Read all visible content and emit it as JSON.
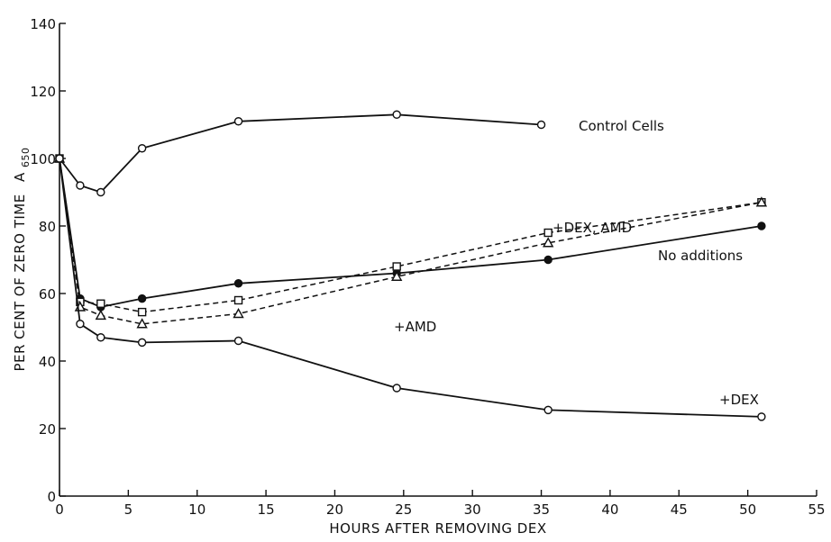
{
  "chart_data": {
    "type": "line",
    "xlabel": "HOURS AFTER REMOVING DEX",
    "ylabel": "PER CENT OF ZERO TIME",
    "ylabel_subscript_base": "A",
    "ylabel_subscript": "650",
    "xlim": [
      0,
      55
    ],
    "ylim": [
      0,
      140
    ],
    "xticks": [
      "0",
      "5",
      "10",
      "15",
      "20",
      "25",
      "30",
      "35",
      "40",
      "45",
      "50",
      "55"
    ],
    "yticks": [
      "0",
      "20",
      "40",
      "60",
      "80",
      "100",
      "120",
      "140"
    ],
    "grid": false,
    "series": [
      {
        "name": "Control Cells",
        "marker": "open-circle",
        "linestyle": "solid",
        "points": [
          [
            0,
            100
          ],
          [
            1.5,
            92
          ],
          [
            3,
            90
          ],
          [
            6,
            103
          ],
          [
            13,
            111
          ],
          [
            24.5,
            113
          ],
          [
            35,
            110
          ]
        ]
      },
      {
        "name": "No additions",
        "marker": "filled-circle",
        "linestyle": "solid",
        "points": [
          [
            0,
            100
          ],
          [
            1.5,
            58.5
          ],
          [
            3,
            56
          ],
          [
            6,
            58.5
          ],
          [
            13,
            63
          ],
          [
            24.5,
            66
          ],
          [
            35.5,
            70
          ],
          [
            51,
            80
          ]
        ]
      },
      {
        "name": "+DEX, AMD",
        "marker": "open-square",
        "linestyle": "dashed",
        "points": [
          [
            0,
            100
          ],
          [
            1.5,
            57.5
          ],
          [
            3,
            57
          ],
          [
            6,
            54.5
          ],
          [
            13,
            58
          ],
          [
            24.5,
            68
          ],
          [
            35.5,
            78
          ],
          [
            51,
            87
          ]
        ]
      },
      {
        "name": "+AMD",
        "marker": "open-triangle",
        "linestyle": "dashed",
        "points": [
          [
            0,
            100
          ],
          [
            1.5,
            56
          ],
          [
            3,
            53.5
          ],
          [
            6,
            51
          ],
          [
            13,
            54
          ],
          [
            24.5,
            65
          ],
          [
            35.5,
            75
          ],
          [
            51,
            87
          ]
        ]
      },
      {
        "name": "+DEX",
        "marker": "open-circle",
        "linestyle": "solid",
        "points": [
          [
            0,
            100
          ],
          [
            1.5,
            51
          ],
          [
            3,
            47
          ],
          [
            6,
            45.5
          ],
          [
            13,
            46
          ],
          [
            24.5,
            32
          ],
          [
            35.5,
            25.5
          ],
          [
            51,
            23.5
          ]
        ]
      }
    ]
  }
}
